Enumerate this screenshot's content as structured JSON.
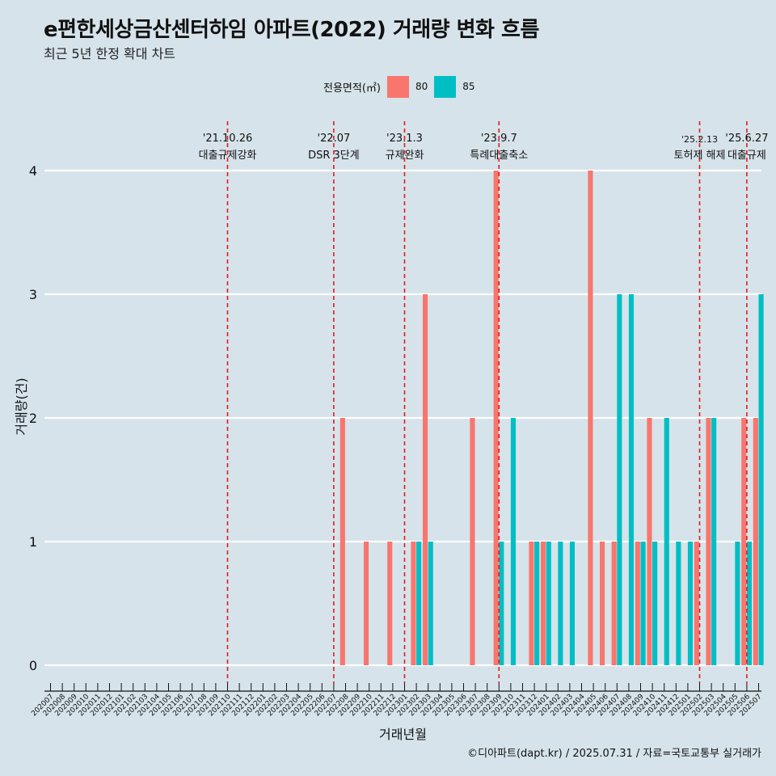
{
  "title": "e편한세상금산센터하임 아파트(2022) 거래량 변화 흐름",
  "subtitle": "최근 5년 한정 확대 차트",
  "caption": "©디아파트(dapt.kr) / 2025.07.31 / 자료=국토교통부 실거래가",
  "legend": {
    "title": "전용면적(㎡)",
    "items": [
      {
        "label": "80",
        "color": "#f8766d"
      },
      {
        "label": "85",
        "color": "#00bfc4"
      }
    ]
  },
  "chart_data": {
    "type": "bar",
    "xlabel": "거래년월",
    "ylabel": "거래량(건)",
    "ylim": [
      0,
      4
    ],
    "yticks": [
      0,
      1,
      2,
      3,
      4
    ],
    "grid": true,
    "legend_position": "top",
    "categories": [
      "202007",
      "202008",
      "202009",
      "202010",
      "202011",
      "202012",
      "202101",
      "202102",
      "202103",
      "202104",
      "202105",
      "202106",
      "202107",
      "202108",
      "202109",
      "202110",
      "202111",
      "202112",
      "202201",
      "202202",
      "202203",
      "202204",
      "202205",
      "202206",
      "202207",
      "202208",
      "202209",
      "202210",
      "202211",
      "202212",
      "202301",
      "202302",
      "202303",
      "202304",
      "202305",
      "202306",
      "202307",
      "202308",
      "202309",
      "202310",
      "202311",
      "202312",
      "202401",
      "202402",
      "202403",
      "202404",
      "202405",
      "202406",
      "202407",
      "202408",
      "202409",
      "202410",
      "202411",
      "202412",
      "202501",
      "202502",
      "202503",
      "202504",
      "202505",
      "202506",
      "202507"
    ],
    "series": [
      {
        "name": "80",
        "color": "#f8766d",
        "values": [
          0,
          0,
          0,
          0,
          0,
          0,
          0,
          0,
          0,
          0,
          0,
          0,
          0,
          0,
          0,
          0,
          0,
          0,
          0,
          0,
          0,
          0,
          0,
          0,
          0,
          2,
          0,
          1,
          0,
          1,
          0,
          1,
          3,
          0,
          0,
          0,
          2,
          0,
          4,
          0,
          0,
          1,
          1,
          0,
          0,
          0,
          4,
          1,
          1,
          0,
          1,
          2,
          0,
          0,
          0,
          1,
          2,
          0,
          0,
          2,
          2
        ]
      },
      {
        "name": "85",
        "color": "#00bfc4",
        "values": [
          0,
          0,
          0,
          0,
          0,
          0,
          0,
          0,
          0,
          0,
          0,
          0,
          0,
          0,
          0,
          0,
          0,
          0,
          0,
          0,
          0,
          0,
          0,
          0,
          0,
          0,
          0,
          0,
          0,
          0,
          0,
          1,
          1,
          0,
          0,
          0,
          0,
          0,
          1,
          2,
          0,
          1,
          1,
          1,
          1,
          0,
          0,
          0,
          3,
          3,
          1,
          1,
          2,
          1,
          1,
          0,
          2,
          0,
          1,
          1,
          3
        ]
      }
    ],
    "events": [
      {
        "date": "202110",
        "label_date": "'21.10.26",
        "label": "대출규제강화"
      },
      {
        "date": "202207",
        "label_date": "'22.07",
        "label": "DSR 3단계"
      },
      {
        "date": "202301",
        "label_date": "'23.1.3",
        "label": "규제완화"
      },
      {
        "date": "202309",
        "label_date": "'23.9.7",
        "label": "특례대출축소"
      },
      {
        "date": "202502",
        "label_date": "'25.2.13",
        "label": "토허제 해제"
      },
      {
        "date": "202506",
        "label_date": "'25.6.27",
        "label": "대출규제"
      }
    ]
  }
}
